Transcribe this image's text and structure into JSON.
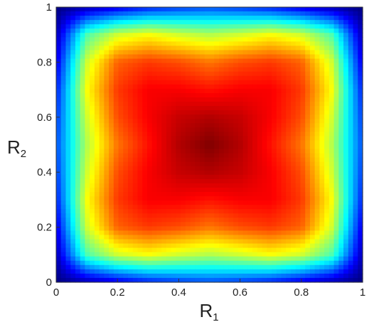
{
  "chart_data": {
    "type": "heatmap",
    "title": "",
    "xlabel": {
      "main": "R",
      "sub": "1"
    },
    "ylabel": {
      "main": "R",
      "sub": "2"
    },
    "xlim": [
      0,
      1
    ],
    "ylim": [
      0,
      1
    ],
    "x_ticks": [
      "0",
      "0.2",
      "0.4",
      "0.6",
      "0.8",
      "1"
    ],
    "y_ticks": [
      "0",
      "0.2",
      "0.4",
      "0.6",
      "0.8",
      "1"
    ],
    "x_tick_values": [
      0,
      0.2,
      0.4,
      0.6,
      0.8,
      1
    ],
    "y_tick_values": [
      0,
      0.2,
      0.4,
      0.6,
      0.8,
      1
    ],
    "colormap": "jet",
    "grid": false,
    "legend": "none",
    "grid_resolution": 11,
    "z_description": "value rises from edges (low, blue) to center (high, dark red) with four lobes toward the corners",
    "z": [
      [
        0.0,
        0.05,
        0.1,
        0.15,
        0.18,
        0.2,
        0.18,
        0.15,
        0.1,
        0.05,
        0.0
      ],
      [
        0.05,
        0.45,
        0.58,
        0.62,
        0.58,
        0.55,
        0.58,
        0.62,
        0.58,
        0.45,
        0.05
      ],
      [
        0.1,
        0.58,
        0.78,
        0.82,
        0.8,
        0.76,
        0.8,
        0.82,
        0.78,
        0.58,
        0.1
      ],
      [
        0.15,
        0.62,
        0.82,
        0.88,
        0.88,
        0.86,
        0.88,
        0.88,
        0.82,
        0.62,
        0.15
      ],
      [
        0.18,
        0.58,
        0.8,
        0.88,
        0.93,
        0.95,
        0.93,
        0.88,
        0.8,
        0.58,
        0.18
      ],
      [
        0.2,
        0.55,
        0.76,
        0.86,
        0.95,
        1.0,
        0.95,
        0.86,
        0.76,
        0.55,
        0.2
      ],
      [
        0.18,
        0.58,
        0.8,
        0.88,
        0.93,
        0.95,
        0.93,
        0.88,
        0.8,
        0.58,
        0.18
      ],
      [
        0.15,
        0.62,
        0.82,
        0.88,
        0.88,
        0.86,
        0.88,
        0.88,
        0.82,
        0.62,
        0.15
      ],
      [
        0.1,
        0.58,
        0.78,
        0.82,
        0.8,
        0.76,
        0.8,
        0.82,
        0.78,
        0.58,
        0.1
      ],
      [
        0.05,
        0.45,
        0.58,
        0.62,
        0.58,
        0.55,
        0.58,
        0.62,
        0.58,
        0.45,
        0.05
      ],
      [
        0.0,
        0.05,
        0.1,
        0.15,
        0.18,
        0.2,
        0.18,
        0.15,
        0.1,
        0.05,
        0.0
      ]
    ]
  }
}
